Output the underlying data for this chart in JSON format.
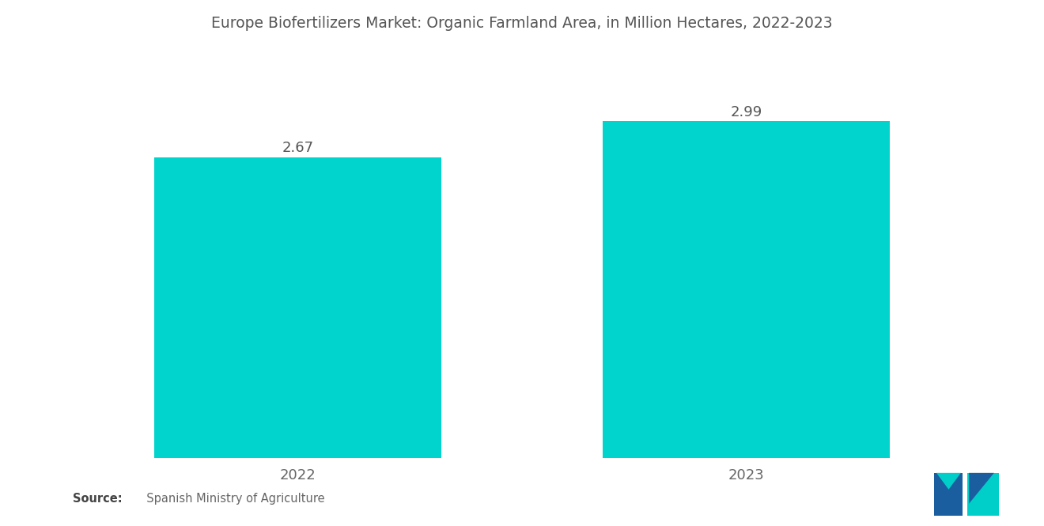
{
  "title": "Europe Biofertilizers Market: Organic Farmland Area, in Million Hectares, 2022-2023",
  "categories": [
    "2022",
    "2023"
  ],
  "values": [
    2.67,
    2.99
  ],
  "bar_color": "#00D4CC",
  "background_color": "#ffffff",
  "title_fontsize": 13.5,
  "label_fontsize": 13,
  "value_fontsize": 13,
  "source_bold": "Source:",
  "source_rest": "  Spanish Ministry of Agriculture",
  "bar_width": 0.32,
  "xlim": [
    0.0,
    1.0
  ],
  "ylim": [
    0,
    3.18
  ],
  "x_positions": [
    0.25,
    0.75
  ],
  "title_color": "#555555",
  "label_color": "#666666",
  "value_color": "#555555"
}
